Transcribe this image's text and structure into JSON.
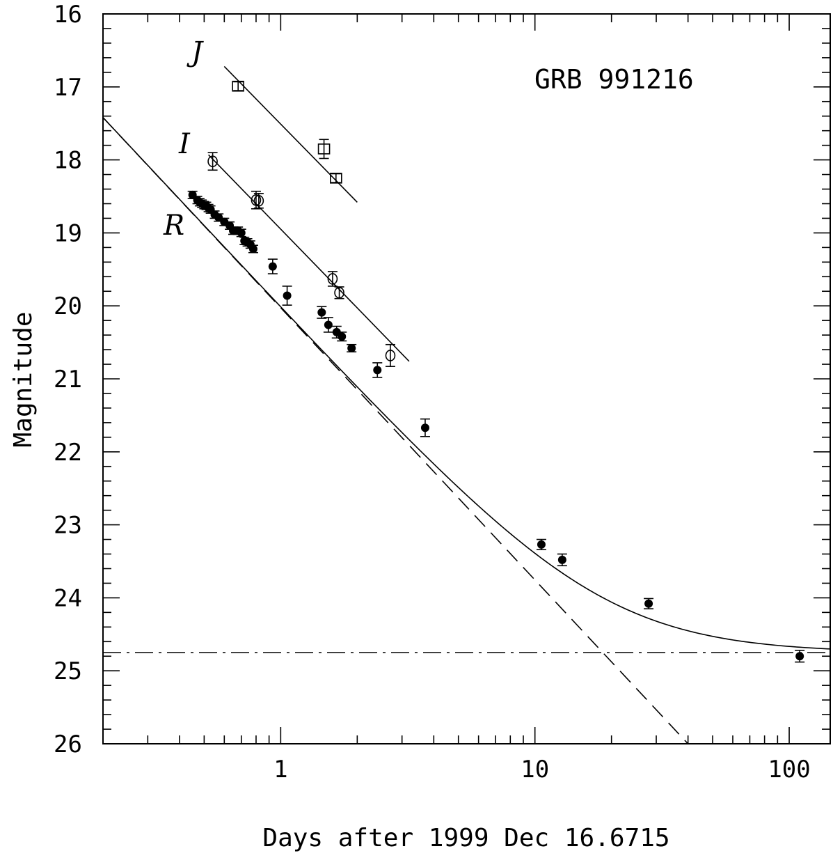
{
  "chart_data": {
    "type": "scatter",
    "title": "GRB 991216",
    "xlabel": "Days after 1999 Dec 16.6715",
    "ylabel": "Magnitude",
    "x_scale": "log",
    "xlim": [
      0.2,
      145
    ],
    "ylim": [
      26,
      16
    ],
    "y_inverted": true,
    "x_tick_labels": [
      {
        "value": 1,
        "label": "1"
      },
      {
        "value": 10,
        "label": "10"
      },
      {
        "value": 100,
        "label": "100"
      }
    ],
    "y_ticks": [
      16,
      17,
      18,
      19,
      20,
      21,
      22,
      23,
      24,
      25,
      26
    ],
    "series": [
      {
        "name": "J",
        "marker": "open-square",
        "points": [
          {
            "x": 0.68,
            "y": 16.99,
            "err": 0.06
          },
          {
            "x": 1.48,
            "y": 17.85,
            "err": 0.13
          },
          {
            "x": 1.65,
            "y": 18.25,
            "err": 0.06
          }
        ]
      },
      {
        "name": "I",
        "marker": "open-circle",
        "points": [
          {
            "x": 0.54,
            "y": 18.02,
            "err": 0.12
          },
          {
            "x": 0.8,
            "y": 18.55,
            "err": 0.12
          },
          {
            "x": 0.82,
            "y": 18.56,
            "err": 0.1
          },
          {
            "x": 1.6,
            "y": 19.63,
            "err": 0.1
          },
          {
            "x": 1.7,
            "y": 19.82,
            "err": 0.08
          },
          {
            "x": 2.7,
            "y": 20.68,
            "err": 0.15
          }
        ]
      },
      {
        "name": "R",
        "marker": "filled-circle",
        "points": [
          {
            "x": 0.45,
            "y": 18.48,
            "err": 0.05
          },
          {
            "x": 0.47,
            "y": 18.55,
            "err": 0.05
          },
          {
            "x": 0.48,
            "y": 18.58,
            "err": 0.05
          },
          {
            "x": 0.49,
            "y": 18.6,
            "err": 0.05
          },
          {
            "x": 0.5,
            "y": 18.62,
            "err": 0.05
          },
          {
            "x": 0.51,
            "y": 18.63,
            "err": 0.05
          },
          {
            "x": 0.52,
            "y": 18.66,
            "err": 0.05
          },
          {
            "x": 0.53,
            "y": 18.68,
            "err": 0.05
          },
          {
            "x": 0.55,
            "y": 18.75,
            "err": 0.05
          },
          {
            "x": 0.57,
            "y": 18.79,
            "err": 0.05
          },
          {
            "x": 0.6,
            "y": 18.85,
            "err": 0.05
          },
          {
            "x": 0.63,
            "y": 18.9,
            "err": 0.05
          },
          {
            "x": 0.65,
            "y": 18.97,
            "err": 0.05
          },
          {
            "x": 0.68,
            "y": 18.97,
            "err": 0.05
          },
          {
            "x": 0.7,
            "y": 19.0,
            "err": 0.05
          },
          {
            "x": 0.72,
            "y": 19.11,
            "err": 0.05
          },
          {
            "x": 0.74,
            "y": 19.13,
            "err": 0.05
          },
          {
            "x": 0.76,
            "y": 19.16,
            "err": 0.05
          },
          {
            "x": 0.78,
            "y": 19.22,
            "err": 0.05
          },
          {
            "x": 0.93,
            "y": 19.46,
            "err": 0.1
          },
          {
            "x": 1.06,
            "y": 19.86,
            "err": 0.13
          },
          {
            "x": 1.45,
            "y": 20.09,
            "err": 0.08
          },
          {
            "x": 1.54,
            "y": 20.26,
            "err": 0.1
          },
          {
            "x": 1.66,
            "y": 20.36,
            "err": 0.08
          },
          {
            "x": 1.74,
            "y": 20.42,
            "err": 0.06
          },
          {
            "x": 1.9,
            "y": 20.58,
            "err": 0.05
          },
          {
            "x": 2.4,
            "y": 20.88,
            "err": 0.1
          },
          {
            "x": 3.7,
            "y": 21.67,
            "err": 0.12
          },
          {
            "x": 10.6,
            "y": 23.27,
            "err": 0.07
          },
          {
            "x": 12.8,
            "y": 23.48,
            "err": 0.08
          },
          {
            "x": 28.0,
            "y": 24.08,
            "err": 0.07
          },
          {
            "x": 110,
            "y": 24.8,
            "err": 0.08
          }
        ]
      }
    ],
    "fits": {
      "J_line": {
        "style": "solid",
        "x": [
          0.6,
          2.0
        ],
        "y": [
          16.72,
          18.58
        ]
      },
      "I_line": {
        "style": "solid",
        "x": [
          0.52,
          3.2
        ],
        "y": [
          17.93,
          20.76
        ]
      },
      "R_power_law": {
        "style": "dashed",
        "x": [
          0.2,
          40
        ],
        "y": [
          17.42,
          26.0
        ]
      },
      "R_total": {
        "style": "solid",
        "host_magnitude": 24.75
      },
      "host_level": {
        "style": "dash-dot",
        "y": 24.75
      }
    },
    "band_labels": [
      "J",
      "I",
      "R"
    ]
  }
}
